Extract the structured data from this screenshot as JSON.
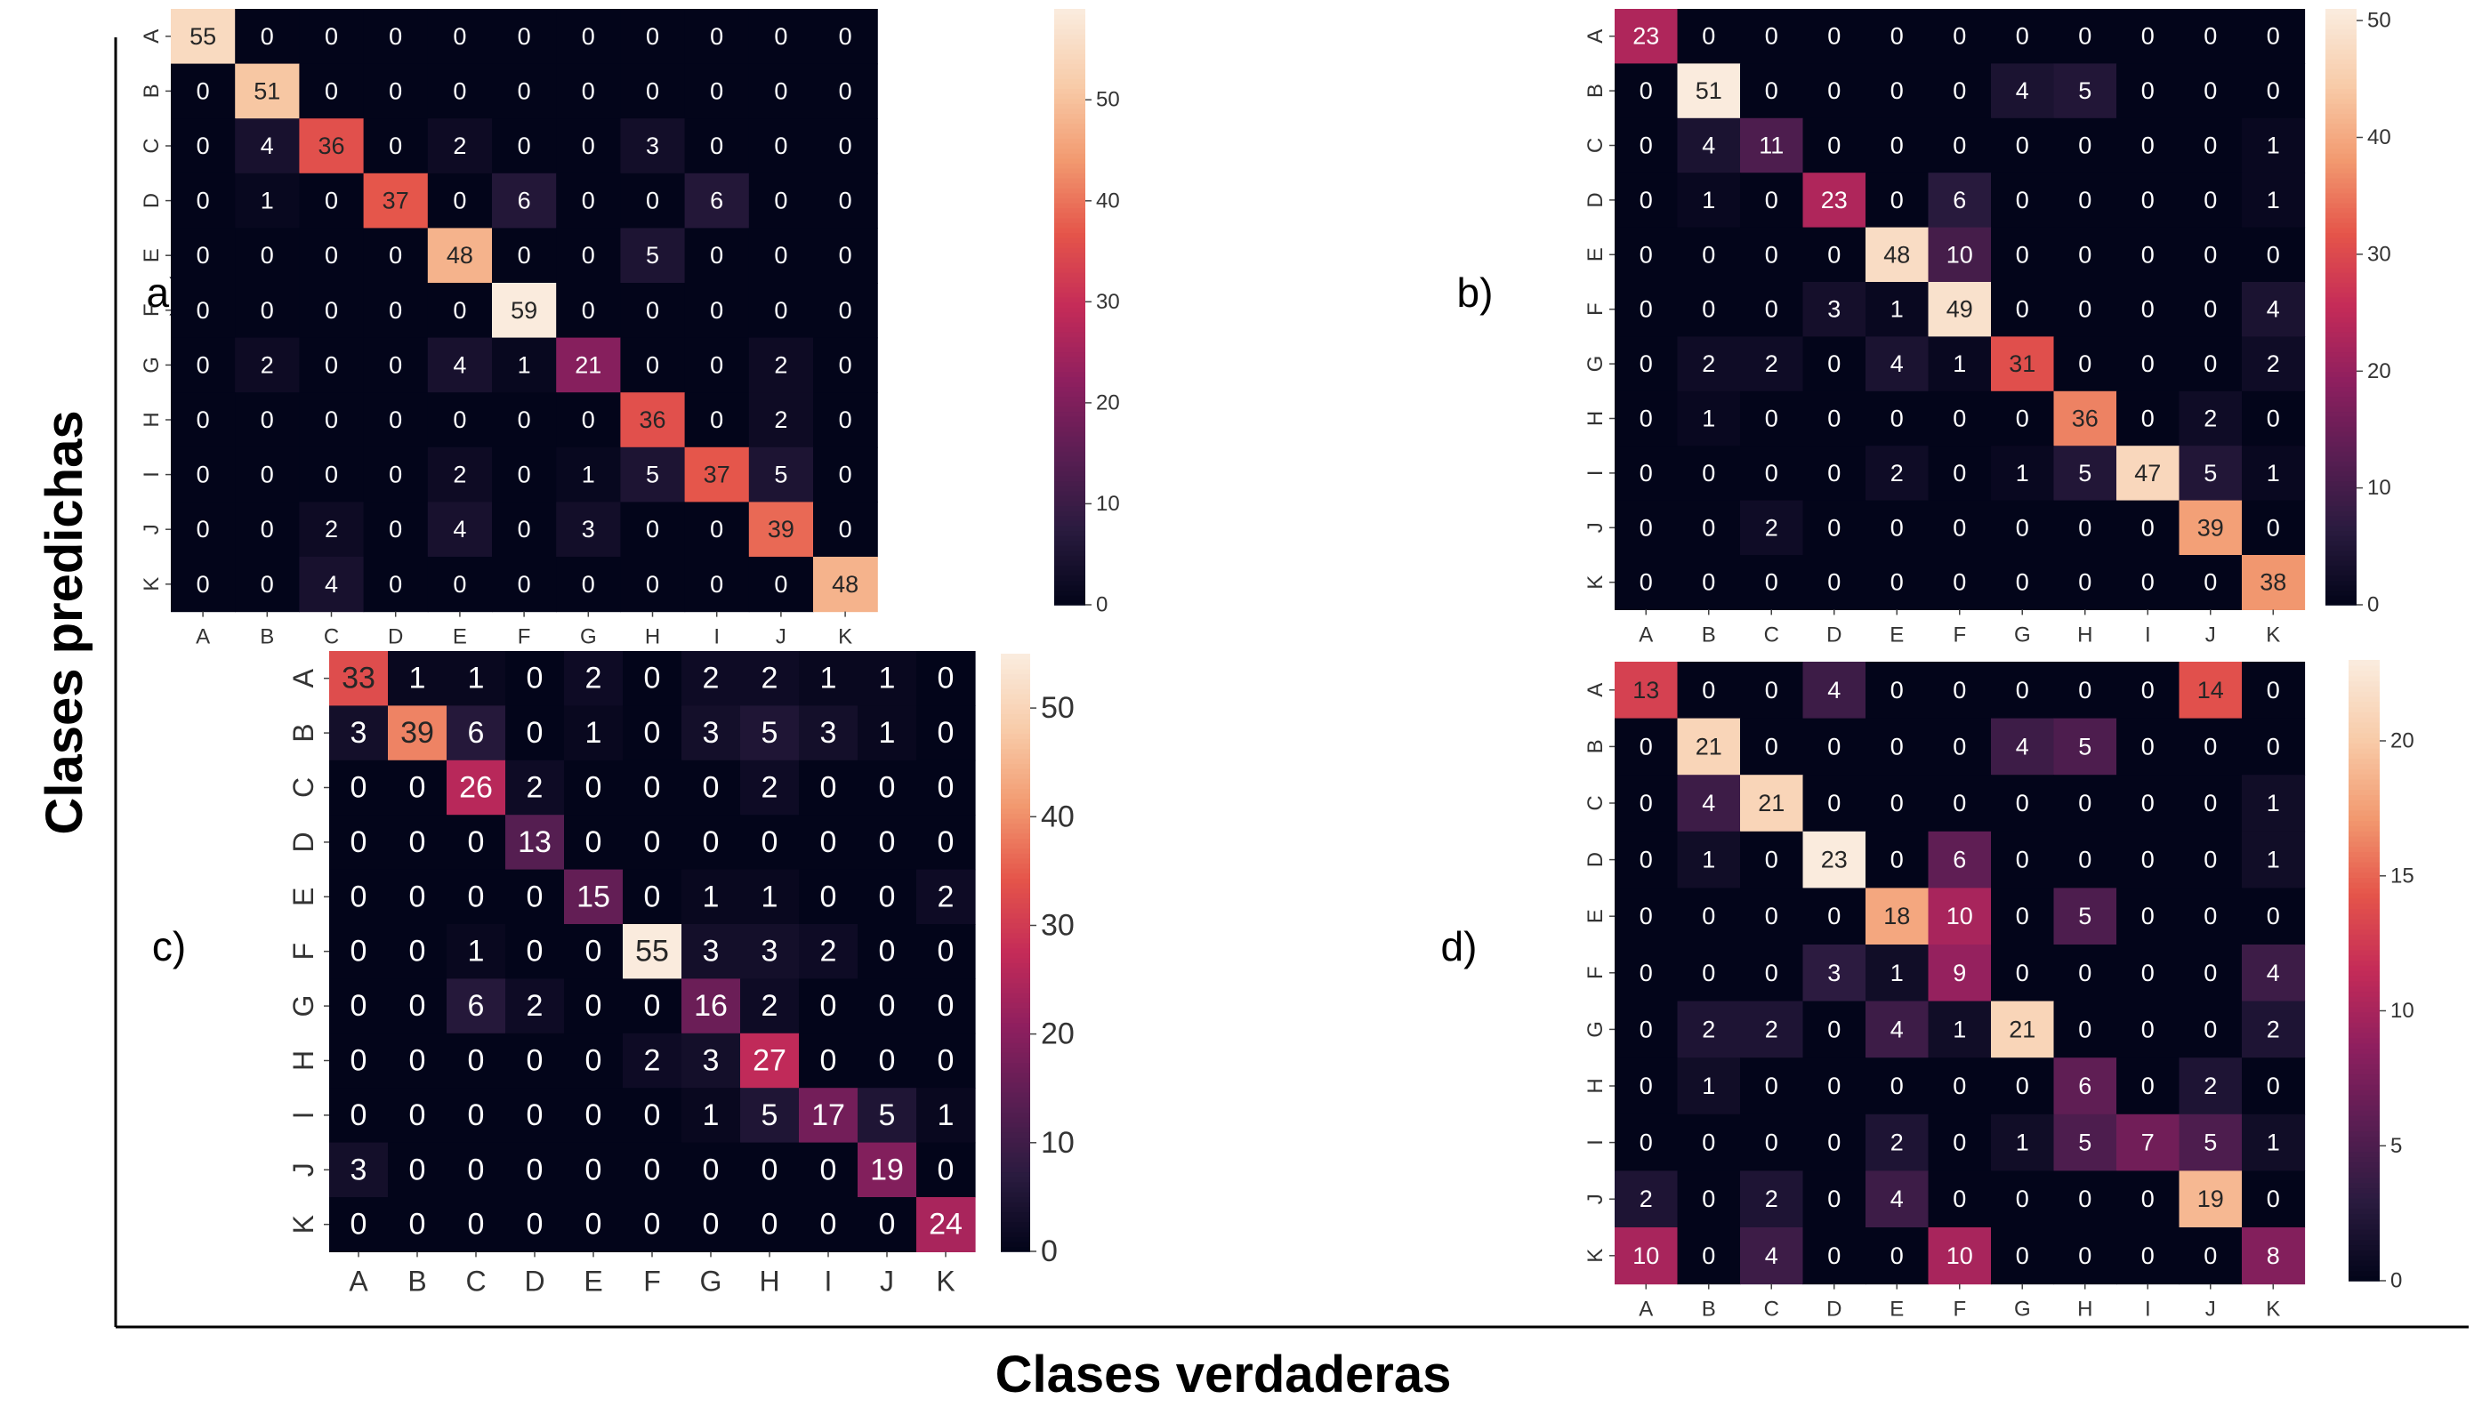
{
  "figure": {
    "xlabel": "Clases verdaderas",
    "ylabel": "Clases predichas",
    "colormap": [
      "#03051a",
      "#2a1b3f",
      "#5a1e53",
      "#8e1f5f",
      "#c42b58",
      "#e5554a",
      "#f29a70",
      "#f8cba8",
      "#faebdd"
    ]
  },
  "chart_data": [
    {
      "type": "heatmap",
      "panel_label": "a)",
      "x_categories": [
        "A",
        "B",
        "C",
        "D",
        "E",
        "F",
        "G",
        "H",
        "I",
        "J",
        "K"
      ],
      "y_categories": [
        "A",
        "B",
        "C",
        "D",
        "E",
        "F",
        "G",
        "H",
        "I",
        "J",
        "K"
      ],
      "values": [
        [
          55,
          0,
          0,
          0,
          0,
          0,
          0,
          0,
          0,
          0,
          0
        ],
        [
          0,
          51,
          0,
          0,
          0,
          0,
          0,
          0,
          0,
          0,
          0
        ],
        [
          0,
          4,
          36,
          0,
          2,
          0,
          0,
          3,
          0,
          0,
          0
        ],
        [
          0,
          1,
          0,
          37,
          0,
          6,
          0,
          0,
          6,
          0,
          0
        ],
        [
          0,
          0,
          0,
          0,
          48,
          0,
          0,
          5,
          0,
          0,
          0
        ],
        [
          0,
          0,
          0,
          0,
          0,
          59,
          0,
          0,
          0,
          0,
          0
        ],
        [
          0,
          2,
          0,
          0,
          4,
          1,
          21,
          0,
          0,
          2,
          0
        ],
        [
          0,
          0,
          0,
          0,
          0,
          0,
          0,
          36,
          0,
          2,
          0
        ],
        [
          0,
          0,
          0,
          0,
          2,
          0,
          1,
          5,
          37,
          5,
          0
        ],
        [
          0,
          0,
          2,
          0,
          4,
          0,
          3,
          0,
          0,
          39,
          0
        ],
        [
          0,
          0,
          4,
          0,
          0,
          0,
          0,
          0,
          0,
          0,
          48
        ]
      ],
      "colorbar_range": [
        0,
        59
      ],
      "colorbar_ticks": [
        0,
        10,
        20,
        30,
        40,
        50
      ]
    },
    {
      "type": "heatmap",
      "panel_label": "b)",
      "x_categories": [
        "A",
        "B",
        "C",
        "D",
        "E",
        "F",
        "G",
        "H",
        "I",
        "J",
        "K"
      ],
      "y_categories": [
        "A",
        "B",
        "C",
        "D",
        "E",
        "F",
        "G",
        "H",
        "I",
        "J",
        "K"
      ],
      "values": [
        [
          23,
          0,
          0,
          0,
          0,
          0,
          0,
          0,
          0,
          0,
          0
        ],
        [
          0,
          51,
          0,
          0,
          0,
          0,
          4,
          5,
          0,
          0,
          0
        ],
        [
          0,
          4,
          11,
          0,
          0,
          0,
          0,
          0,
          0,
          0,
          1
        ],
        [
          0,
          1,
          0,
          23,
          0,
          6,
          0,
          0,
          0,
          0,
          1
        ],
        [
          0,
          0,
          0,
          0,
          48,
          10,
          0,
          0,
          0,
          0,
          0
        ],
        [
          0,
          0,
          0,
          3,
          1,
          49,
          0,
          0,
          0,
          0,
          4
        ],
        [
          0,
          2,
          2,
          0,
          4,
          1,
          31,
          0,
          0,
          0,
          2
        ],
        [
          0,
          1,
          0,
          0,
          0,
          0,
          0,
          36,
          0,
          2,
          0
        ],
        [
          0,
          0,
          0,
          0,
          2,
          0,
          1,
          5,
          47,
          5,
          1
        ],
        [
          0,
          0,
          2,
          0,
          0,
          0,
          0,
          0,
          0,
          39,
          0
        ],
        [
          0,
          0,
          0,
          0,
          0,
          0,
          0,
          0,
          0,
          0,
          38
        ]
      ],
      "colorbar_range": [
        0,
        51
      ],
      "colorbar_ticks": [
        0,
        10,
        20,
        30,
        40,
        50
      ]
    },
    {
      "type": "heatmap",
      "panel_label": "c)",
      "x_categories": [
        "A",
        "B",
        "C",
        "D",
        "E",
        "F",
        "G",
        "H",
        "I",
        "J",
        "K"
      ],
      "y_categories": [
        "A",
        "B",
        "C",
        "D",
        "E",
        "F",
        "G",
        "H",
        "I",
        "J",
        "K"
      ],
      "values": [
        [
          33,
          1,
          1,
          0,
          2,
          0,
          2,
          2,
          1,
          1,
          0
        ],
        [
          3,
          39,
          6,
          0,
          1,
          0,
          3,
          5,
          3,
          1,
          0
        ],
        [
          0,
          0,
          26,
          2,
          0,
          0,
          0,
          2,
          0,
          0,
          0
        ],
        [
          0,
          0,
          0,
          13,
          0,
          0,
          0,
          0,
          0,
          0,
          0
        ],
        [
          0,
          0,
          0,
          0,
          15,
          0,
          1,
          1,
          0,
          0,
          2
        ],
        [
          0,
          0,
          1,
          0,
          0,
          55,
          3,
          3,
          2,
          0,
          0
        ],
        [
          0,
          0,
          6,
          2,
          0,
          0,
          16,
          2,
          0,
          0,
          0
        ],
        [
          0,
          0,
          0,
          0,
          0,
          2,
          3,
          27,
          0,
          0,
          0
        ],
        [
          0,
          0,
          0,
          0,
          0,
          0,
          1,
          5,
          17,
          5,
          1
        ],
        [
          3,
          0,
          0,
          0,
          0,
          0,
          0,
          0,
          0,
          19,
          0
        ],
        [
          0,
          0,
          0,
          0,
          0,
          0,
          0,
          0,
          0,
          0,
          24
        ]
      ],
      "colorbar_range": [
        0,
        55
      ],
      "colorbar_ticks": [
        0,
        10,
        20,
        30,
        40,
        50
      ]
    },
    {
      "type": "heatmap",
      "panel_label": "d)",
      "x_categories": [
        "A",
        "B",
        "C",
        "D",
        "E",
        "F",
        "G",
        "H",
        "I",
        "J",
        "K"
      ],
      "y_categories": [
        "A",
        "B",
        "C",
        "D",
        "E",
        "F",
        "G",
        "H",
        "I",
        "J",
        "K"
      ],
      "values": [
        [
          13,
          0,
          0,
          4,
          0,
          0,
          0,
          0,
          0,
          14,
          0
        ],
        [
          0,
          21,
          0,
          0,
          0,
          0,
          4,
          5,
          0,
          0,
          0
        ],
        [
          0,
          4,
          21,
          0,
          0,
          0,
          0,
          0,
          0,
          0,
          1
        ],
        [
          0,
          1,
          0,
          23,
          0,
          6,
          0,
          0,
          0,
          0,
          1
        ],
        [
          0,
          0,
          0,
          0,
          18,
          10,
          0,
          5,
          0,
          0,
          0
        ],
        [
          0,
          0,
          0,
          3,
          1,
          9,
          0,
          0,
          0,
          0,
          4
        ],
        [
          0,
          2,
          2,
          0,
          4,
          1,
          21,
          0,
          0,
          0,
          2
        ],
        [
          0,
          1,
          0,
          0,
          0,
          0,
          0,
          6,
          0,
          2,
          0
        ],
        [
          0,
          0,
          0,
          0,
          2,
          0,
          1,
          5,
          7,
          5,
          1
        ],
        [
          2,
          0,
          2,
          0,
          4,
          0,
          0,
          0,
          0,
          19,
          0
        ],
        [
          10,
          0,
          4,
          0,
          0,
          10,
          0,
          0,
          0,
          0,
          8
        ]
      ],
      "colorbar_range": [
        0,
        23
      ],
      "colorbar_ticks": [
        0,
        5,
        10,
        15,
        20
      ]
    }
  ]
}
